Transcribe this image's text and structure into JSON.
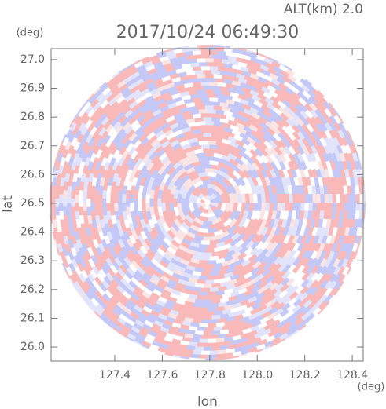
{
  "chart_data": {
    "type": "radar-field",
    "title": "2017/10/24 06:49:30",
    "annotation": "ALT(km) 2.0",
    "xlabel": "lon",
    "ylabel": "lat",
    "x_unit": "(deg)",
    "y_unit": "(deg)",
    "xlim": [
      127.132,
      128.446
    ],
    "ylim": [
      25.951,
      27.038
    ],
    "xticks": [
      127.4,
      127.6,
      127.8,
      {
        "value": 128.0,
        "label": "128.0"
      },
      128.2,
      128.4
    ],
    "yticks": [
      {
        "value": 26.0,
        "label": "26.0"
      },
      26.1,
      26.2,
      26.3,
      26.4,
      26.5,
      26.6,
      26.7,
      26.8,
      26.9,
      {
        "value": 27.0,
        "label": "27.0"
      }
    ],
    "colors": [
      "#f9b9b9",
      "#c3c8f7",
      "#fbe4e4",
      "#e2e4fb",
      "#ffffff"
    ]
  }
}
